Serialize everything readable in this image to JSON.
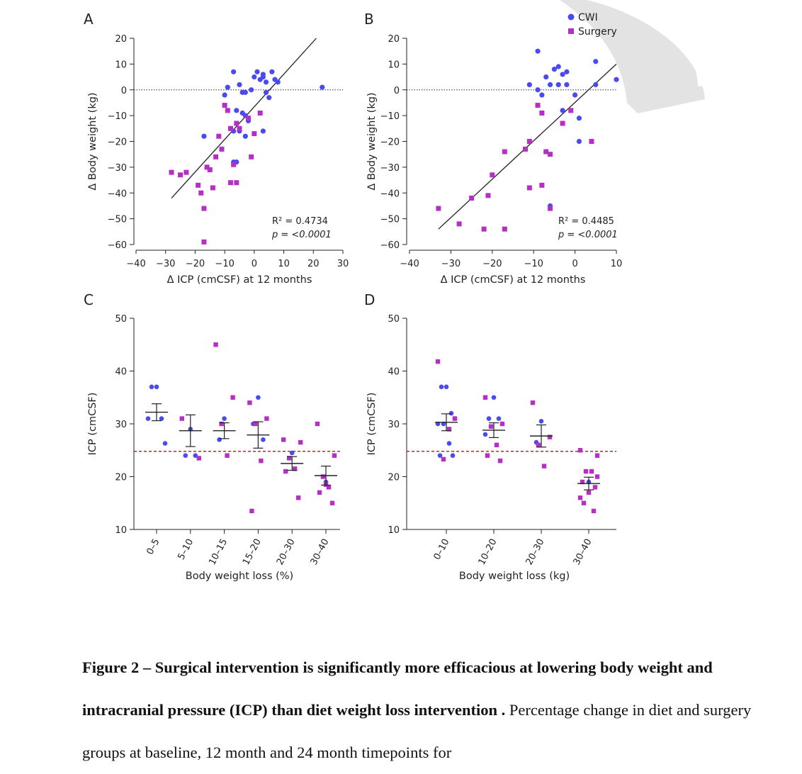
{
  "colors": {
    "cwi": "#4a4af0",
    "surgery": "#b52fc4",
    "ref_line": "#cc2222",
    "axis": "#222222",
    "wm": "#d8d8d8"
  },
  "legend": [
    {
      "name": "CWI",
      "marker": "circle"
    },
    {
      "name": "Surgery",
      "marker": "square"
    }
  ],
  "chart_data": [
    {
      "panel": "A",
      "type": "scatter",
      "xlabel": "Δ ICP (cmCSF) at 12 months",
      "ylabel": "Δ Body weight (kg)",
      "xlim": [
        -40,
        30
      ],
      "ylim": [
        -60,
        20
      ],
      "xticks": [
        -40,
        -30,
        -20,
        -10,
        0,
        10,
        20,
        30
      ],
      "yticks": [
        20,
        10,
        0,
        -10,
        -20,
        -30,
        -40,
        -50,
        -60
      ],
      "zero_line": true,
      "stats": {
        "r2": "R² = 0.4734",
        "p": "p = <0.0001"
      },
      "fit": {
        "x0": -28,
        "y0": -42,
        "x1": 21,
        "y1": 20
      },
      "series": [
        {
          "name": "CWI",
          "points": [
            [
              -7,
              7
            ],
            [
              -10,
              -2
            ],
            [
              -9,
              1
            ],
            [
              -5,
              2
            ],
            [
              -4,
              -1
            ],
            [
              -3,
              -1
            ],
            [
              -6,
              -8
            ],
            [
              -4,
              -9
            ],
            [
              -3,
              -10
            ],
            [
              -2,
              -12
            ],
            [
              -8,
              -15
            ],
            [
              -7,
              -16
            ],
            [
              -5,
              -16
            ],
            [
              -3,
              -18
            ],
            [
              -1,
              0
            ],
            [
              0,
              5
            ],
            [
              1,
              7
            ],
            [
              2,
              4
            ],
            [
              3,
              5
            ],
            [
              3,
              6
            ],
            [
              4,
              3
            ],
            [
              4,
              -1
            ],
            [
              5,
              -3
            ],
            [
              6,
              7
            ],
            [
              7,
              4
            ],
            [
              8,
              3
            ],
            [
              3,
              -16
            ],
            [
              -6,
              -28
            ],
            [
              -7,
              -28
            ],
            [
              23,
              1
            ],
            [
              -17,
              -18
            ]
          ]
        },
        {
          "name": "Surgery",
          "points": [
            [
              -28,
              -32
            ],
            [
              -25,
              -33
            ],
            [
              -23,
              -32
            ],
            [
              -19,
              -37
            ],
            [
              -18,
              -40
            ],
            [
              -17,
              -46
            ],
            [
              -16,
              -30
            ],
            [
              -15,
              -31
            ],
            [
              -14,
              -38
            ],
            [
              -13,
              -26
            ],
            [
              -12,
              -18
            ],
            [
              -11,
              -23
            ],
            [
              -10,
              -6
            ],
            [
              -9,
              -8
            ],
            [
              -8,
              -15
            ],
            [
              -7,
              -29
            ],
            [
              -6,
              -36
            ],
            [
              -6,
              -13
            ],
            [
              -5,
              -15
            ],
            [
              -2,
              -11
            ],
            [
              -1,
              -26
            ],
            [
              0,
              -17
            ],
            [
              2,
              -9
            ],
            [
              -17,
              -59
            ],
            [
              -8,
              -36
            ]
          ]
        }
      ]
    },
    {
      "panel": "B",
      "type": "scatter",
      "xlabel": "Δ ICP (cmCSF) at 12 months",
      "ylabel": "Δ Body weight (kg)",
      "xlim": [
        -40,
        10
      ],
      "ylim": [
        -60,
        20
      ],
      "xticks": [
        -40,
        -30,
        -20,
        -10,
        0,
        10
      ],
      "yticks": [
        20,
        10,
        0,
        -10,
        -20,
        -30,
        -40,
        -50,
        -60
      ],
      "zero_line": true,
      "stats": {
        "r2": "R² = 0.4485",
        "p": "p = <0.0001"
      },
      "fit": {
        "x0": -33,
        "y0": -54,
        "x1": 10,
        "y1": 10
      },
      "series": [
        {
          "name": "CWI",
          "points": [
            [
              -9,
              15
            ],
            [
              -7,
              5
            ],
            [
              -5,
              8
            ],
            [
              -4,
              9
            ],
            [
              -3,
              6
            ],
            [
              -2,
              7
            ],
            [
              -11,
              2
            ],
            [
              -9,
              0
            ],
            [
              -6,
              2
            ],
            [
              -4,
              2
            ],
            [
              -3,
              -8
            ],
            [
              -2,
              2
            ],
            [
              0,
              -2
            ],
            [
              1,
              -11
            ],
            [
              1,
              -20
            ],
            [
              5,
              11
            ],
            [
              5,
              2
            ],
            [
              10,
              4
            ],
            [
              -6,
              -45
            ],
            [
              -8,
              -2
            ]
          ]
        },
        {
          "name": "Surgery",
          "points": [
            [
              -33,
              -46
            ],
            [
              -28,
              -52
            ],
            [
              -25,
              -42
            ],
            [
              -22,
              -54
            ],
            [
              -21,
              -41
            ],
            [
              -20,
              -33
            ],
            [
              -17,
              -54
            ],
            [
              -17,
              -24
            ],
            [
              -12,
              -23
            ],
            [
              -11,
              -20
            ],
            [
              -11,
              -38
            ],
            [
              -9,
              -6
            ],
            [
              -8,
              -9
            ],
            [
              -8,
              -37
            ],
            [
              -7,
              -24
            ],
            [
              -6,
              -25
            ],
            [
              -6,
              -46
            ],
            [
              -3,
              -13
            ],
            [
              -1,
              -8
            ],
            [
              4,
              -20
            ]
          ]
        }
      ]
    },
    {
      "panel": "C",
      "type": "dot",
      "xlabel": "Body weight loss (%)",
      "ylabel": "ICP (cmCSF)",
      "ylim": [
        10,
        50
      ],
      "yticks": [
        50,
        40,
        30,
        20,
        10
      ],
      "categories": [
        "0–5",
        "5–10",
        "10–15",
        "15–20",
        "20–30",
        "30–40"
      ],
      "reference_line": 24.8,
      "summary": [
        {
          "mean": 32.2,
          "sem": 1.6
        },
        {
          "mean": 28.7,
          "sem": 3.0
        },
        {
          "mean": 28.7,
          "sem": 1.5
        },
        {
          "mean": 27.9,
          "sem": 2.5
        },
        {
          "mean": 22.5,
          "sem": 1.3
        },
        {
          "mean": 20.2,
          "sem": 1.8
        }
      ],
      "points": [
        {
          "cwi": [
            37,
            37,
            31,
            31,
            26.3
          ],
          "surgery": []
        },
        {
          "cwi": [
            29,
            24,
            24
          ],
          "surgery": [
            31,
            23.5
          ]
        },
        {
          "cwi": [
            31,
            27
          ],
          "surgery": [
            45,
            35,
            30,
            24
          ]
        },
        {
          "cwi": [
            35,
            30,
            27
          ],
          "surgery": [
            34,
            31,
            30,
            23,
            13.5
          ]
        },
        {
          "cwi": [
            24.5
          ],
          "surgery": [
            27,
            26.5,
            23.5,
            21.5,
            21,
            16
          ]
        },
        {
          "cwi": [
            19
          ],
          "surgery": [
            30,
            24,
            20,
            18,
            17,
            15,
            18.5
          ]
        }
      ]
    },
    {
      "panel": "D",
      "type": "dot",
      "xlabel": "Body weight loss (kg)",
      "ylabel": "ICP (cmCSF)",
      "ylim": [
        10,
        50
      ],
      "yticks": [
        50,
        40,
        30,
        20,
        10
      ],
      "categories": [
        "0–10",
        "10–20",
        "20–30",
        "30–40"
      ],
      "reference_line": 24.8,
      "summary": [
        {
          "mean": 30.3,
          "sem": 1.6
        },
        {
          "mean": 28.8,
          "sem": 1.4
        },
        {
          "mean": 27.7,
          "sem": 2.1
        },
        {
          "mean": 18.7,
          "sem": 1.2
        }
      ],
      "points": [
        {
          "cwi": [
            37,
            37,
            32,
            30,
            31,
            30,
            26.3,
            24,
            24
          ],
          "surgery": [
            41.8,
            31,
            23.3,
            29
          ]
        },
        {
          "cwi": [
            35,
            31,
            31,
            28
          ],
          "surgery": [
            35,
            30,
            29.5,
            26,
            24,
            23
          ]
        },
        {
          "cwi": [
            30.5,
            26.5
          ],
          "surgery": [
            34,
            27.5,
            26,
            22
          ]
        },
        {
          "cwi": [
            19
          ],
          "surgery": [
            25,
            24,
            21,
            21,
            19,
            18,
            17,
            15,
            13.5,
            16,
            20
          ]
        }
      ]
    }
  ],
  "caption": {
    "bold": "Figure 2 – Surgical intervention is significantly more efficacious at lowering body weight and intracranial pressure (ICP) than diet weight loss intervention .",
    "text": " Percentage change in diet and surgery groups at baseline, 12 month and 24 month timepoints for"
  }
}
